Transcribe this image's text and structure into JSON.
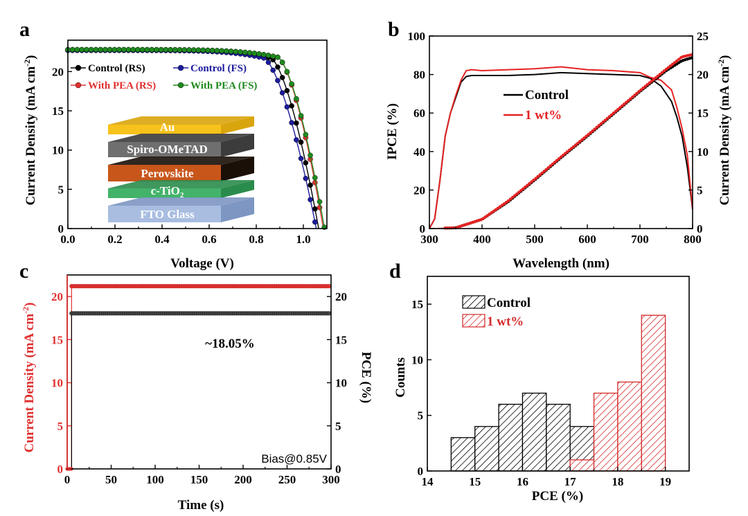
{
  "panels": {
    "a": "a",
    "b": "b",
    "c": "c",
    "d": "d"
  },
  "colors": {
    "control": "#000000",
    "fs_blue": "#1c1c9c",
    "pea_red": "#e03030",
    "pea_green": "#1f8a1f",
    "ipce_red": "#e52222",
    "hist_red": "#d42a2a"
  },
  "chart_data": [
    {
      "type": "line",
      "panel": "a",
      "xlabel": "Voltage (V)",
      "ylabel": "Current Density (mA cm",
      "ylabel_sup": "-2",
      "ylabel_end": ")",
      "xlim": [
        0.0,
        1.1
      ],
      "ylim": [
        0,
        24
      ],
      "xticks": [
        "0.0",
        "0.2",
        "0.4",
        "0.6",
        "0.8",
        "1.0"
      ],
      "yticks": [
        "0",
        "5",
        "10",
        "15",
        "20"
      ],
      "series": [
        {
          "name": "Control (RS)",
          "Jsc": 22.7,
          "Voc": 1.065,
          "knee": 0.86
        },
        {
          "name": "Control (FS)",
          "Jsc": 22.7,
          "Voc": 1.055,
          "knee": 0.83
        },
        {
          "name": "With PEA (RS)",
          "Jsc": 22.8,
          "Voc": 1.085,
          "knee": 0.89
        },
        {
          "name": "With PEA (FS)",
          "Jsc": 22.8,
          "Voc": 1.09,
          "knee": 0.89
        }
      ],
      "layers": [
        "Au",
        "Spiro-OMeTAD",
        "Perovskite",
        "c-TiO",
        "FTO Glass"
      ],
      "layer_sub": "2"
    },
    {
      "type": "line",
      "panel": "b",
      "xlabel": "Wavelength (nm)",
      "ylabel": "IPCE (%)",
      "y2label": "Current Density (mA cm",
      "y2label_sup": "-2",
      "y2label_end": ")",
      "xlim": [
        300,
        800
      ],
      "ylim": [
        0,
        100
      ],
      "y2lim": [
        0,
        25
      ],
      "xticks": [
        "300",
        "400",
        "500",
        "600",
        "700",
        "800"
      ],
      "yticks": [
        "0",
        "20",
        "40",
        "60",
        "80",
        "100"
      ],
      "y2ticks": [
        "0",
        "5",
        "10",
        "15",
        "20",
        "25"
      ],
      "series": [
        {
          "name": "Control",
          "x": [
            300,
            310,
            320,
            330,
            340,
            350,
            360,
            370,
            380,
            400,
            450,
            500,
            550,
            600,
            650,
            700,
            720,
            740,
            760,
            770,
            780,
            790,
            800
          ],
          "y": [
            0,
            5,
            25,
            48,
            60,
            68,
            76,
            79,
            79.5,
            79.5,
            79.5,
            80,
            81,
            80.5,
            80,
            79.5,
            78,
            74,
            66,
            58,
            48,
            32,
            10
          ]
        },
        {
          "name": "1 wt%",
          "x": [
            300,
            310,
            320,
            330,
            340,
            350,
            360,
            370,
            380,
            400,
            450,
            500,
            550,
            600,
            650,
            700,
            720,
            740,
            760,
            770,
            780,
            790,
            800
          ],
          "y": [
            0,
            5,
            25,
            48,
            60,
            69,
            77,
            82,
            82.5,
            82,
            82.5,
            83,
            84,
            82.5,
            82,
            81,
            78.5,
            77,
            72,
            63,
            52,
            38,
            10
          ]
        }
      ],
      "integrated": [
        {
          "name": "Control",
          "x": [
            300,
            350,
            400,
            450,
            500,
            550,
            600,
            650,
            700,
            750,
            780,
            800
          ],
          "y": [
            0,
            0.1,
            1.2,
            3.5,
            6.3,
            9.2,
            12.0,
            14.9,
            17.8,
            20.5,
            21.8,
            22.2
          ]
        },
        {
          "name": "1 wt%",
          "x": [
            300,
            350,
            400,
            450,
            500,
            550,
            600,
            650,
            700,
            750,
            780,
            800
          ],
          "y": [
            0,
            0.1,
            1.2,
            3.6,
            6.4,
            9.3,
            12.1,
            15.0,
            17.9,
            20.7,
            22.3,
            22.6
          ]
        }
      ]
    },
    {
      "type": "line",
      "panel": "c",
      "xlabel": "Time (s)",
      "ylabel": "Current Density (mA cm",
      "ylabel_sup": "-2",
      "ylabel_end": ")",
      "y2label": "PCE (%)",
      "xlim": [
        0,
        300
      ],
      "ylim": [
        0,
        22.5
      ],
      "y2lim": [
        0,
        22.5
      ],
      "xticks": [
        "0",
        "50",
        "100",
        "150",
        "200",
        "250",
        "300"
      ],
      "yticks": [
        "0",
        "5",
        "10",
        "15",
        "20"
      ],
      "y2ticks": [
        "0",
        "5",
        "10",
        "15",
        "20"
      ],
      "series": [
        {
          "name": "Current Density",
          "start": 5,
          "value": 21.2
        },
        {
          "name": "PCE",
          "start": 5,
          "value": 18.05
        }
      ],
      "annotation": "~18.05%",
      "bias": "Bias@0.85V"
    },
    {
      "type": "bar",
      "panel": "d",
      "xlabel": "PCE (%)",
      "ylabel": "Counts",
      "xlim": [
        14,
        19.5
      ],
      "ylim": [
        0,
        17.5
      ],
      "xticks": [
        "14",
        "15",
        "16",
        "17",
        "18",
        "19"
      ],
      "yticks": [
        "0",
        "5",
        "10",
        "15"
      ],
      "series": [
        {
          "name": "Control",
          "bins": [
            [
              14.5,
              15.0,
              3
            ],
            [
              15.0,
              15.5,
              4
            ],
            [
              15.5,
              16.0,
              6
            ],
            [
              16.0,
              16.5,
              7
            ],
            [
              16.5,
              17.0,
              6
            ],
            [
              17.0,
              17.5,
              4
            ]
          ]
        },
        {
          "name": "1 wt%",
          "bins": [
            [
              17.0,
              17.5,
              1
            ],
            [
              17.5,
              18.0,
              7
            ],
            [
              18.0,
              18.5,
              8
            ],
            [
              18.5,
              19.0,
              14
            ]
          ]
        }
      ]
    }
  ]
}
